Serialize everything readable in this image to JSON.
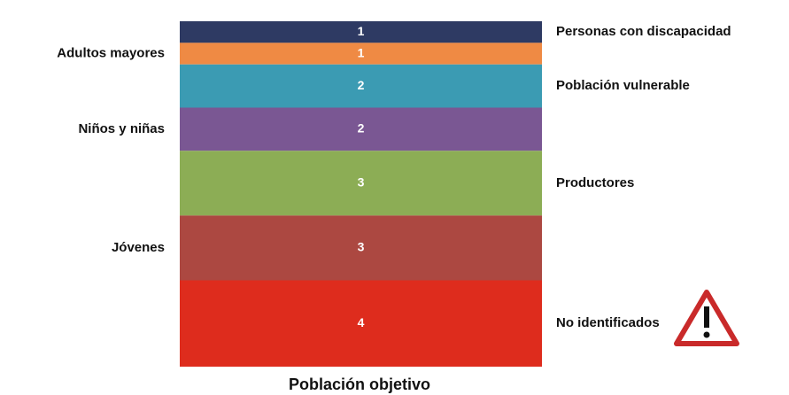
{
  "chart_data": {
    "type": "stacked-bar",
    "title": "Población objetivo",
    "categories": [
      null
    ],
    "series": [
      {
        "name": "Personas con discapacidad",
        "color": "#2e3a63",
        "values": [
          1
        ]
      },
      {
        "name": "Adultos mayores",
        "color": "#ef8a44",
        "values": [
          1
        ]
      },
      {
        "name": "Población vulnerable",
        "color": "#3b9bb3",
        "values": [
          2
        ]
      },
      {
        "name": "Niños y niñas",
        "color": "#7a5793",
        "values": [
          2
        ]
      },
      {
        "name": "Productores",
        "color": "#8cad55",
        "values": [
          3
        ]
      },
      {
        "name": "Jóvenes",
        "color": "#ac4841",
        "values": [
          3
        ]
      },
      {
        "name": "No identificados",
        "color": "#de2c1d",
        "values": [
          4
        ]
      }
    ]
  }
}
